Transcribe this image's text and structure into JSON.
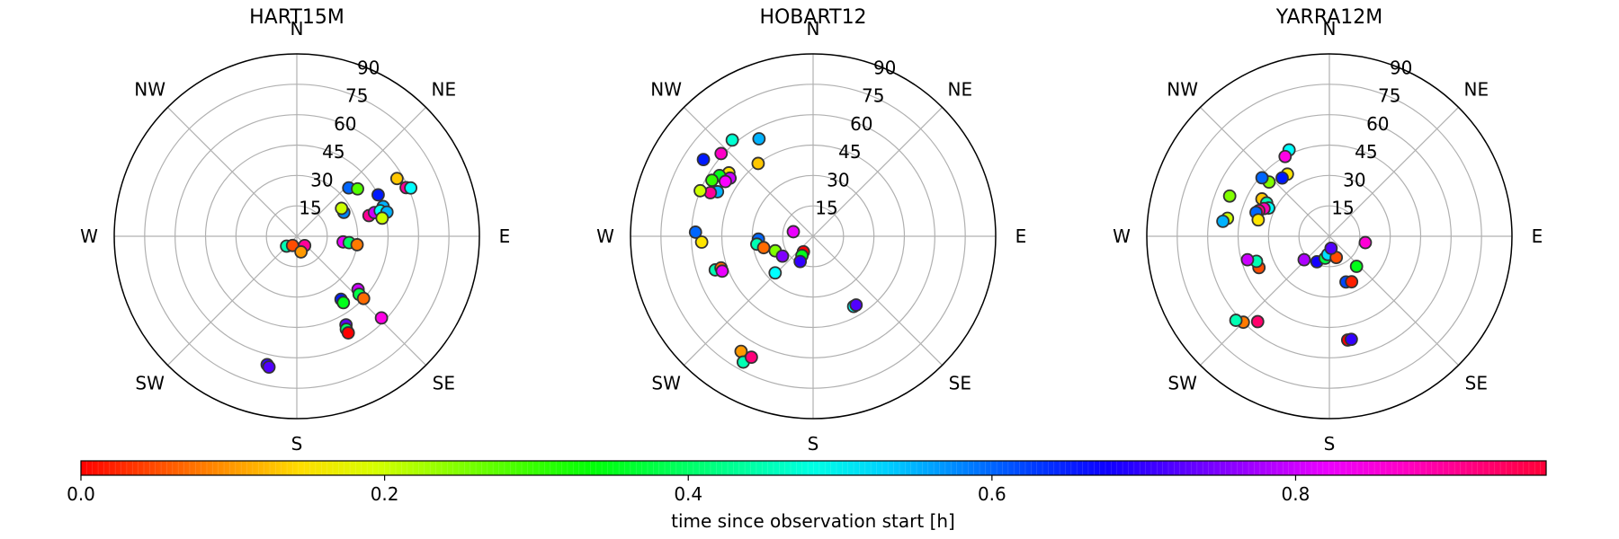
{
  "colors": {
    "colormap": "hsv",
    "grid": "#b0b0b0",
    "marker_edge": "#333333",
    "frame": "#000000"
  },
  "chart_data": {
    "type": "scatter",
    "projection": "polar",
    "radial_ticks": [
      "15",
      "30",
      "45",
      "60",
      "75",
      "90"
    ],
    "radial_range": [
      0,
      90
    ],
    "direction_labels": [
      "E",
      "NE",
      "N",
      "NW",
      "W",
      "SW",
      "S",
      "SE"
    ],
    "direction_angles": [
      0,
      45,
      90,
      135,
      180,
      225,
      270,
      315
    ],
    "grid": true,
    "colorbar": {
      "label": "time since observation start [h]",
      "ticks": [
        "0.0",
        "0.2",
        "0.4",
        "0.6",
        "0.8"
      ],
      "tick_values": [
        0,
        0.2,
        0.4,
        0.6,
        0.8
      ],
      "range": [
        0,
        0.965
      ],
      "colormap": "hsv",
      "placement": "bottom"
    },
    "panels": [
      {
        "title": "HART15M",
        "points": [
          {
            "az": 310,
            "zen": 6,
            "t": 0.9
          },
          {
            "az": 353,
            "zen": 23,
            "t": 0.82
          },
          {
            "az": 353,
            "zen": 26,
            "t": 0.4
          },
          {
            "az": 352,
            "zen": 30,
            "t": 0.08
          },
          {
            "az": 27,
            "zen": 26,
            "t": 0.58
          },
          {
            "az": 32,
            "zen": 26,
            "t": 0.2
          },
          {
            "az": 43,
            "zen": 35,
            "t": 0.6
          },
          {
            "az": 38,
            "zen": 38,
            "t": 0.28
          },
          {
            "az": 27,
            "zen": 45,
            "t": 0.65
          },
          {
            "az": 19,
            "zen": 45,
            "t": 0.55
          },
          {
            "az": 15,
            "zen": 43,
            "t": 0.15
          },
          {
            "az": 30,
            "zen": 57,
            "t": 0.13
          },
          {
            "az": 24,
            "zen": 59,
            "t": 0.9
          },
          {
            "az": 23,
            "zen": 61,
            "t": 0.5
          },
          {
            "az": 16,
            "zen": 37,
            "t": 0.9
          },
          {
            "az": 17,
            "zen": 40,
            "t": 0.8
          },
          {
            "az": 17,
            "zen": 43,
            "t": 0.5
          },
          {
            "az": 15,
            "zen": 46,
            "t": 0.55
          },
          {
            "az": 12,
            "zen": 43,
            "t": 0.2
          },
          {
            "az": 224,
            "zen": 7,
            "t": 0.45
          },
          {
            "az": 245,
            "zen": 5,
            "t": 0.05
          },
          {
            "az": 285,
            "zen": 8,
            "t": 0.1
          },
          {
            "az": 319,
            "zen": 40,
            "t": 0.8
          },
          {
            "az": 317,
            "zen": 42,
            "t": 0.38
          },
          {
            "az": 317,
            "zen": 45,
            "t": 0.07
          },
          {
            "az": 305,
            "zen": 38,
            "t": 0.65
          },
          {
            "az": 305,
            "zen": 40,
            "t": 0.35
          },
          {
            "az": 316,
            "zen": 58,
            "t": 0.85
          },
          {
            "az": 299,
            "zen": 50,
            "t": 0.73
          },
          {
            "az": 298,
            "zen": 52,
            "t": 0.4
          },
          {
            "az": 298,
            "zen": 54,
            "t": 0.0
          },
          {
            "az": 257,
            "zen": 65,
            "t": 0.7
          },
          {
            "az": 258,
            "zen": 66,
            "t": 0.72
          }
        ]
      },
      {
        "title": "HOBART12",
        "points": [
          {
            "az": 167,
            "zen": 10,
            "t": 0.82
          },
          {
            "az": 183,
            "zen": 27,
            "t": 0.6
          },
          {
            "az": 188,
            "zen": 28,
            "t": 0.45
          },
          {
            "az": 193,
            "zen": 25,
            "t": 0.07
          },
          {
            "az": 201,
            "zen": 20,
            "t": 0.25
          },
          {
            "az": 213,
            "zen": 18,
            "t": 0.75
          },
          {
            "az": 224,
            "zen": 26,
            "t": 0.5
          },
          {
            "az": 238,
            "zen": 9,
            "t": 0.0
          },
          {
            "az": 240,
            "zen": 11,
            "t": 0.35
          },
          {
            "az": 243,
            "zen": 14,
            "t": 0.7
          },
          {
            "az": 300,
            "zen": 40,
            "t": 0.5
          },
          {
            "az": 302,
            "zen": 40,
            "t": 0.72
          },
          {
            "az": 127,
            "zen": 45,
            "t": 0.13
          },
          {
            "az": 119,
            "zen": 55,
            "t": 0.55
          },
          {
            "az": 143,
            "zen": 52,
            "t": 0.15
          },
          {
            "az": 145,
            "zen": 50,
            "t": 0.8
          },
          {
            "az": 147,
            "zen": 55,
            "t": 0.35
          },
          {
            "az": 155,
            "zen": 52,
            "t": 0.55
          },
          {
            "az": 157,
            "zen": 55,
            "t": 0.9
          },
          {
            "az": 158,
            "zen": 60,
            "t": 0.2
          },
          {
            "az": 151,
            "zen": 57,
            "t": 0.3
          },
          {
            "az": 183,
            "zen": 55,
            "t": 0.15
          },
          {
            "az": 178,
            "zen": 58,
            "t": 0.6
          },
          {
            "az": 145,
            "zen": 66,
            "t": 0.65
          },
          {
            "az": 199,
            "zen": 51,
            "t": 0.45
          },
          {
            "az": 199,
            "zen": 48,
            "t": 0.07
          },
          {
            "az": 201,
            "zen": 48,
            "t": 0.82
          },
          {
            "az": 238,
            "zen": 67,
            "t": 0.1
          },
          {
            "az": 241,
            "zen": 71,
            "t": 0.45
          },
          {
            "az": 243,
            "zen": 67,
            "t": 0.92
          },
          {
            "az": 148,
            "zen": 51,
            "t": 0.83
          },
          {
            "az": 138,
            "zen": 61,
            "t": 0.87
          },
          {
            "az": 130,
            "zen": 62,
            "t": 0.47
          }
        ]
      },
      {
        "title": "YARRA12M",
        "points": [
          {
            "az": 115,
            "zen": 47,
            "t": 0.5
          },
          {
            "az": 119,
            "zen": 45,
            "t": 0.85
          },
          {
            "az": 124,
            "zen": 37,
            "t": 0.15
          },
          {
            "az": 129,
            "zen": 37,
            "t": 0.65
          },
          {
            "az": 138,
            "zen": 40,
            "t": 0.25
          },
          {
            "az": 139,
            "zen": 44,
            "t": 0.6
          },
          {
            "az": 151,
            "zen": 38,
            "t": 0.13
          },
          {
            "az": 152,
            "zen": 35,
            "t": 0.45
          },
          {
            "az": 155,
            "zen": 33,
            "t": 0.5
          },
          {
            "az": 157,
            "zen": 35,
            "t": 0.88
          },
          {
            "az": 160,
            "zen": 37,
            "t": 0.92
          },
          {
            "az": 162,
            "zen": 38,
            "t": 0.6
          },
          {
            "az": 167,
            "zen": 36,
            "t": 0.15
          },
          {
            "az": 170,
            "zen": 51,
            "t": 0.2
          },
          {
            "az": 172,
            "zen": 53,
            "t": 0.55
          },
          {
            "az": 158,
            "zen": 53,
            "t": 0.25
          },
          {
            "az": 204,
            "zen": 38,
            "t": 0.05
          },
          {
            "az": 199,
            "zen": 38,
            "t": 0.45
          },
          {
            "az": 196,
            "zen": 42,
            "t": 0.8
          },
          {
            "az": 225,
            "zen": 60,
            "t": 0.08
          },
          {
            "az": 222,
            "zen": 62,
            "t": 0.45
          },
          {
            "az": 230,
            "zen": 55,
            "t": 0.93
          },
          {
            "az": 244,
            "zen": 14,
            "t": 0.68
          },
          {
            "az": 259,
            "zen": 11,
            "t": 0.38
          },
          {
            "az": 265,
            "zen": 9,
            "t": 0.52
          },
          {
            "az": 288,
            "zen": 11,
            "t": 0.05
          },
          {
            "az": 223,
            "zen": 17,
            "t": 0.78
          },
          {
            "az": 278,
            "zen": 6,
            "t": 0.72
          },
          {
            "az": 312,
            "zen": 20,
            "t": 0.35
          },
          {
            "az": 350,
            "zen": 18,
            "t": 0.86
          },
          {
            "az": 290,
            "zen": 24,
            "t": 0.62
          },
          {
            "az": 296,
            "zen": 25,
            "t": 0.02
          },
          {
            "az": 280,
            "zen": 52,
            "t": 0.0
          },
          {
            "az": 282,
            "zen": 52,
            "t": 0.7
          }
        ]
      }
    ]
  }
}
